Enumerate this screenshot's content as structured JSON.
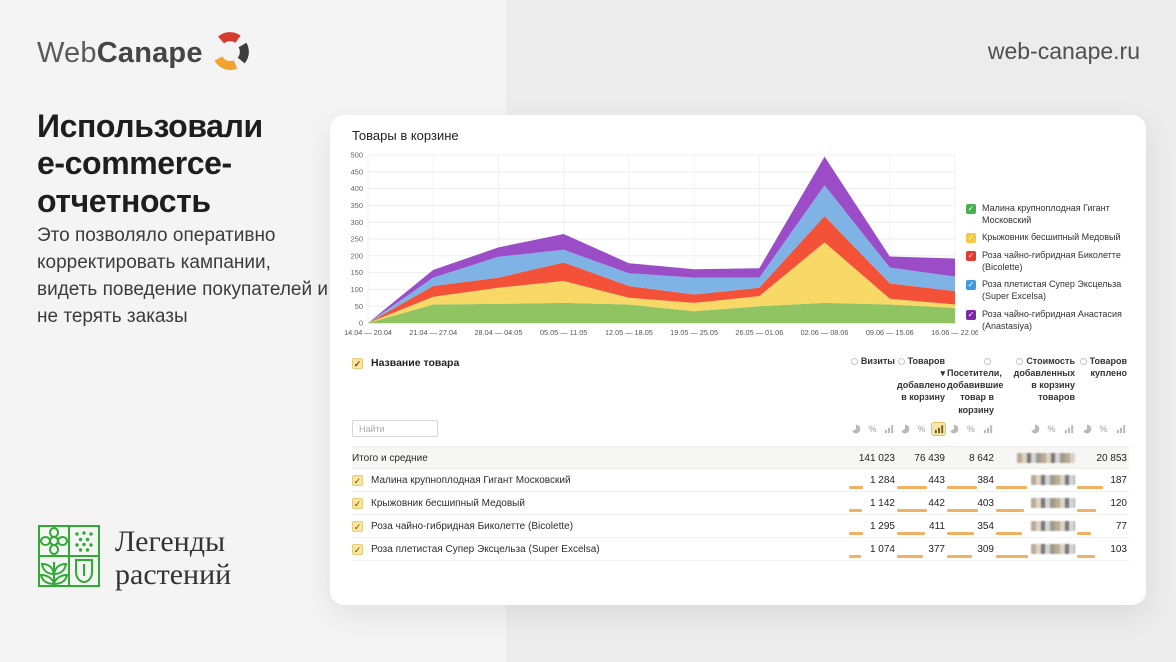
{
  "header": {
    "logo_part1": "Web",
    "logo_part2": "Canape",
    "site_url": "web-canape.ru"
  },
  "slide": {
    "headline": "Использовали\ne-commerce-\nотчетность",
    "description": "Это позволяло оперативно корректировать кампании, видеть поведение покупателей и не терять заказы",
    "client_name": "Легенды\nрастений"
  },
  "dashboard": {
    "chart_title": "Товары в корзине",
    "search_placeholder": "Найти",
    "table": {
      "name_header": "Название товара",
      "view_icons": [
        "pie",
        "percent",
        "bars"
      ],
      "columns": [
        {
          "lines": [
            "Визиты"
          ],
          "active_view": null
        },
        {
          "lines": [
            "Товаров ▾",
            "добавлено",
            "в корзину"
          ],
          "active_view": "bars"
        },
        {
          "lines": [
            "Посетители,",
            "добавившие",
            "товар в",
            "корзину"
          ],
          "active_view": null
        },
        {
          "lines": [
            "Стоимость",
            "добавленных",
            "в корзину",
            "товаров"
          ],
          "active_view": null
        },
        {
          "lines": [
            "Товаров",
            "куплено"
          ],
          "active_view": null
        }
      ],
      "totals": {
        "label": "Итого и средние",
        "values": [
          "141 023",
          "76 439",
          "8 642",
          null,
          "20 853"
        ]
      },
      "rows": [
        {
          "name": "Малина крупноплодная Гигант Московский",
          "values": [
            "1 284",
            "443",
            "384",
            null,
            "187"
          ],
          "bars": [
            30,
            60,
            62,
            38,
            50
          ]
        },
        {
          "name": "Крыжовник бесшипный Медовый",
          "values": [
            "1 142",
            "442",
            "403",
            null,
            "120"
          ],
          "bars": [
            28,
            60,
            64,
            35,
            36
          ]
        },
        {
          "name": "Роза чайно-гибридная Биколетте (Bicolette)",
          "values": [
            "1 295",
            "411",
            "354",
            null,
            "77"
          ],
          "bars": [
            30,
            56,
            56,
            32,
            26
          ]
        },
        {
          "name": "Роза плетистая Супер Эксцельза (Super Excelsa)",
          "values": [
            "1 074",
            "377",
            "309",
            null,
            "103"
          ],
          "bars": [
            26,
            52,
            50,
            40,
            34
          ]
        }
      ]
    }
  },
  "chart_data": {
    "type": "area",
    "stacked": true,
    "title": "Товары в корзине",
    "x": [
      "14.04 — 20.04",
      "21.04 — 27.04",
      "28.04 — 04.05",
      "05.05 — 11.05",
      "12.05 — 18.05",
      "19.05 — 25.05",
      "26.05 — 01.06",
      "02.06 — 08.06",
      "09.06 — 15.06",
      "16.06 — 22.06"
    ],
    "xlabel": "",
    "ylabel": "",
    "ylim": [
      0,
      500
    ],
    "ytick_step": 50,
    "grid": true,
    "legend_position": "right",
    "series": [
      {
        "name": "Малина крупноплодная Гигант Московский",
        "color": "#90c462",
        "legend_color": "#46b04a",
        "values": [
          0,
          55,
          57,
          60,
          55,
          35,
          50,
          60,
          55,
          45
        ]
      },
      {
        "name": "Крыжовник бесшипный Медовый",
        "color": "#f8d967",
        "legend_color": "#f5c944",
        "values": [
          0,
          23,
          48,
          65,
          20,
          25,
          30,
          180,
          17,
          10
        ]
      },
      {
        "name": "Роза чайно-гибридная Биколетте (Bicolette)",
        "color": "#f45238",
        "legend_color": "#e6392f",
        "values": [
          0,
          32,
          30,
          55,
          35,
          25,
          25,
          78,
          46,
          40
        ]
      },
      {
        "name": "Роза плетистая Супер Эксцельза (Super Excelsa)",
        "color": "#7fb2e5",
        "legend_color": "#3f9ae0",
        "values": [
          0,
          25,
          62,
          38,
          38,
          50,
          30,
          92,
          47,
          43
        ]
      },
      {
        "name": "Роза чайно-гибридная Анастасия (Anastasiya)",
        "color": "#9b4dc8",
        "legend_color": "#7d26a8",
        "values": [
          0,
          23,
          28,
          47,
          30,
          25,
          28,
          85,
          33,
          54
        ]
      }
    ]
  },
  "colors": {
    "bar": "#f0b262",
    "logo_red": "#d63b2f",
    "logo_dark": "#3c3c3c",
    "logo_yellow": "#f0a32e",
    "client_green": "#2faa33"
  }
}
